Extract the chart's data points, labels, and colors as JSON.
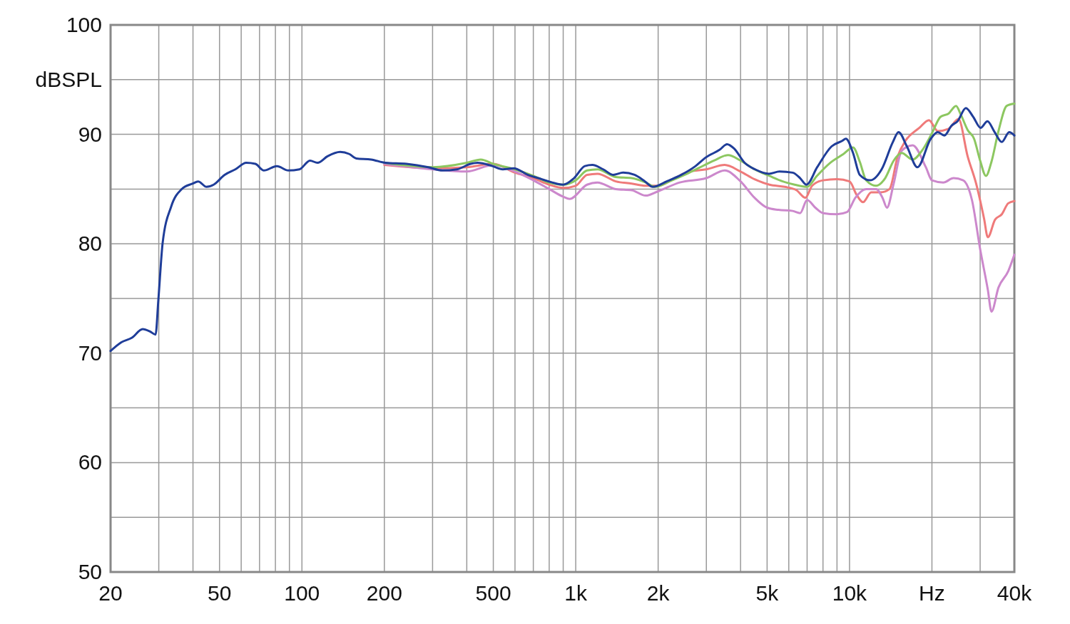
{
  "chart_data": {
    "type": "line",
    "ylabel": "dBSPL",
    "log": "x",
    "grid": true,
    "xlim": [
      20,
      40000
    ],
    "ylim": [
      50,
      100
    ],
    "xticks": [
      20,
      {
        "value": 30,
        "label": null
      },
      {
        "value": 40,
        "label": null
      },
      50,
      {
        "value": 60,
        "label": null
      },
      {
        "value": 70,
        "label": null
      },
      {
        "value": 80,
        "label": null
      },
      {
        "value": 90,
        "label": null
      },
      100,
      200,
      {
        "value": 300,
        "label": null
      },
      {
        "value": 400,
        "label": null
      },
      500,
      {
        "value": 600,
        "label": null
      },
      {
        "value": 700,
        "label": null
      },
      {
        "value": 800,
        "label": null
      },
      {
        "value": 900,
        "label": null
      },
      {
        "value": 1000,
        "label": "1k"
      },
      {
        "value": 2000,
        "label": "2k"
      },
      {
        "value": 3000,
        "label": null
      },
      {
        "value": 4000,
        "label": null
      },
      {
        "value": 5000,
        "label": "5k"
      },
      {
        "value": 6000,
        "label": null
      },
      {
        "value": 7000,
        "label": null
      },
      {
        "value": 8000,
        "label": null
      },
      {
        "value": 9000,
        "label": null
      },
      {
        "value": 10000,
        "label": "10k"
      },
      {
        "value": 20000,
        "label": "Hz"
      },
      {
        "value": 30000,
        "label": null
      },
      {
        "value": 40000,
        "label": "40k"
      }
    ],
    "yticks": [
      50,
      {
        "value": 55,
        "label": null
      },
      60,
      {
        "value": 65,
        "label": null
      },
      70,
      {
        "value": 75,
        "label": null
      },
      80,
      {
        "value": 85,
        "label": null
      },
      90,
      {
        "value": 95,
        "label": null
      },
      100
    ],
    "series": [
      {
        "color": "#ef7a7a",
        "x": [
          200,
          300,
          400,
          500,
          600,
          700,
          800,
          900,
          1000,
          1100,
          1200,
          1400,
          1600,
          1800,
          2000,
          2300,
          2600,
          3000,
          3500,
          4000,
          4500,
          5100,
          5800,
          6400,
          6900,
          7300,
          8000,
          9000,
          10000,
          10600,
          11200,
          12000,
          13000,
          14000,
          15000,
          16000,
          18000,
          19500,
          21000,
          23000,
          25000,
          27000,
          29000,
          31000,
          32000,
          34000,
          36000,
          38000,
          40000
        ],
        "values": [
          87.2,
          86.9,
          87.0,
          87.3,
          86.5,
          86.0,
          85.4,
          85.1,
          85.3,
          86.3,
          86.4,
          85.7,
          85.5,
          85.3,
          85.3,
          86.0,
          86.6,
          86.8,
          87.2,
          86.6,
          85.9,
          85.4,
          85.2,
          84.9,
          84.2,
          85.3,
          85.8,
          85.9,
          85.7,
          84.5,
          83.8,
          84.7,
          84.7,
          85.0,
          88.0,
          89.4,
          90.6,
          91.3,
          90.3,
          90.5,
          91.4,
          88.0,
          85.5,
          82.3,
          80.6,
          82.2,
          82.7,
          83.7,
          83.9
        ]
      },
      {
        "color": "#cc88cc",
        "x": [
          200,
          300,
          400,
          500,
          600,
          700,
          800,
          900,
          950,
          1100,
          1200,
          1400,
          1600,
          1800,
          2000,
          2400,
          3000,
          3500,
          4000,
          4500,
          5000,
          5500,
          6200,
          6600,
          7000,
          7500,
          8000,
          9000,
          9800,
          10500,
          11500,
          12500,
          13200,
          13700,
          14500,
          15500,
          17000,
          19000,
          20000,
          22000,
          24000,
          26000,
          28000,
          30000,
          32000,
          33000,
          35000,
          38000,
          40000
        ],
        "values": [
          87.3,
          86.8,
          86.6,
          87.2,
          86.6,
          85.8,
          85.0,
          84.3,
          84.1,
          85.4,
          85.6,
          85.0,
          84.9,
          84.4,
          84.8,
          85.6,
          86.0,
          86.7,
          85.7,
          84.2,
          83.3,
          83.1,
          83.0,
          82.8,
          84.0,
          83.3,
          82.8,
          82.7,
          82.9,
          84.2,
          85.0,
          85.0,
          84.2,
          83.3,
          85.5,
          88.5,
          89.0,
          87.0,
          85.8,
          85.6,
          86.0,
          85.8,
          84.0,
          79.5,
          75.8,
          73.8,
          76.0,
          77.5,
          79.0
        ]
      },
      {
        "color": "#8cc760",
        "x": [
          200,
          300,
          400,
          450,
          500,
          600,
          700,
          800,
          900,
          1000,
          1100,
          1200,
          1400,
          1600,
          1800,
          1950,
          2200,
          2500,
          2800,
          3200,
          3600,
          4000,
          4500,
          5100,
          5700,
          6300,
          7000,
          7600,
          8500,
          9500,
          10300,
          10900,
          11500,
          12500,
          13500,
          14500,
          15500,
          17000,
          18500,
          20000,
          21500,
          23000,
          24500,
          25500,
          27000,
          28500,
          30000,
          31500,
          33000,
          35000,
          37500,
          40000
        ],
        "values": [
          87.4,
          87.0,
          87.4,
          87.7,
          87.3,
          86.8,
          86.2,
          85.6,
          85.4,
          85.8,
          86.7,
          86.8,
          86.1,
          86.0,
          85.6,
          85.2,
          85.7,
          86.3,
          86.9,
          87.6,
          88.1,
          87.6,
          86.8,
          86.2,
          85.7,
          85.4,
          85.2,
          86.2,
          87.4,
          88.2,
          88.8,
          87.5,
          85.8,
          85.3,
          86.0,
          87.6,
          88.3,
          87.7,
          88.6,
          90.1,
          91.6,
          91.9,
          92.6,
          91.8,
          90.4,
          89.6,
          87.6,
          86.2,
          87.5,
          90.3,
          92.6,
          92.8
        ]
      },
      {
        "color": "#1f3d99",
        "x": [
          20,
          21.9,
          23.9,
          26.2,
          27.8,
          29.2,
          29.9,
          31,
          33.3,
          36.4,
          39.9,
          41.8,
          44.8,
          47.6,
          52.2,
          57.1,
          62.6,
          67.6,
          72.6,
          81,
          89.2,
          97.9,
          107,
          114,
          124,
          138,
          149,
          158,
          179,
          202,
          241,
          289,
          326,
          368,
          413,
          438,
          496,
          541,
          593,
          668,
          752,
          850,
          899,
          986,
          1080,
          1150,
          1260,
          1370,
          1490,
          1640,
          1790,
          1910,
          2150,
          2430,
          2740,
          2990,
          3360,
          3570,
          3790,
          4140,
          4520,
          5080,
          5550,
          6200,
          6600,
          6960,
          7620,
          8600,
          9400,
          9700,
          10300,
          10900,
          11900,
          13100,
          14400,
          15100,
          16200,
          17700,
          19800,
          21000,
          22200,
          23600,
          24800,
          26600,
          28300,
          30100,
          31900,
          33900,
          36000,
          38300,
          40000
        ],
        "values": [
          70.2,
          71.0,
          71.4,
          72.2,
          72.0,
          71.7,
          74.9,
          80.1,
          83.4,
          85.0,
          85.5,
          85.7,
          85.2,
          85.4,
          86.3,
          86.8,
          87.4,
          87.3,
          86.7,
          87.1,
          86.7,
          86.8,
          87.6,
          87.4,
          88.0,
          88.4,
          88.2,
          87.8,
          87.7,
          87.4,
          87.3,
          87.0,
          86.7,
          86.8,
          87.3,
          87.4,
          87.1,
          86.8,
          86.9,
          86.3,
          85.9,
          85.5,
          85.4,
          86.0,
          87.1,
          87.2,
          86.8,
          86.3,
          86.5,
          86.3,
          85.7,
          85.2,
          85.7,
          86.3,
          87.1,
          87.9,
          88.6,
          89.1,
          88.7,
          87.4,
          86.8,
          86.4,
          86.6,
          86.5,
          86.0,
          85.4,
          87.0,
          88.9,
          89.4,
          89.6,
          88.3,
          86.3,
          85.8,
          86.8,
          89.3,
          90.2,
          88.9,
          87.0,
          89.6,
          90.2,
          89.9,
          90.8,
          91.2,
          92.4,
          91.6,
          90.6,
          91.2,
          90.2,
          89.3,
          90.2,
          89.9
        ]
      }
    ]
  }
}
